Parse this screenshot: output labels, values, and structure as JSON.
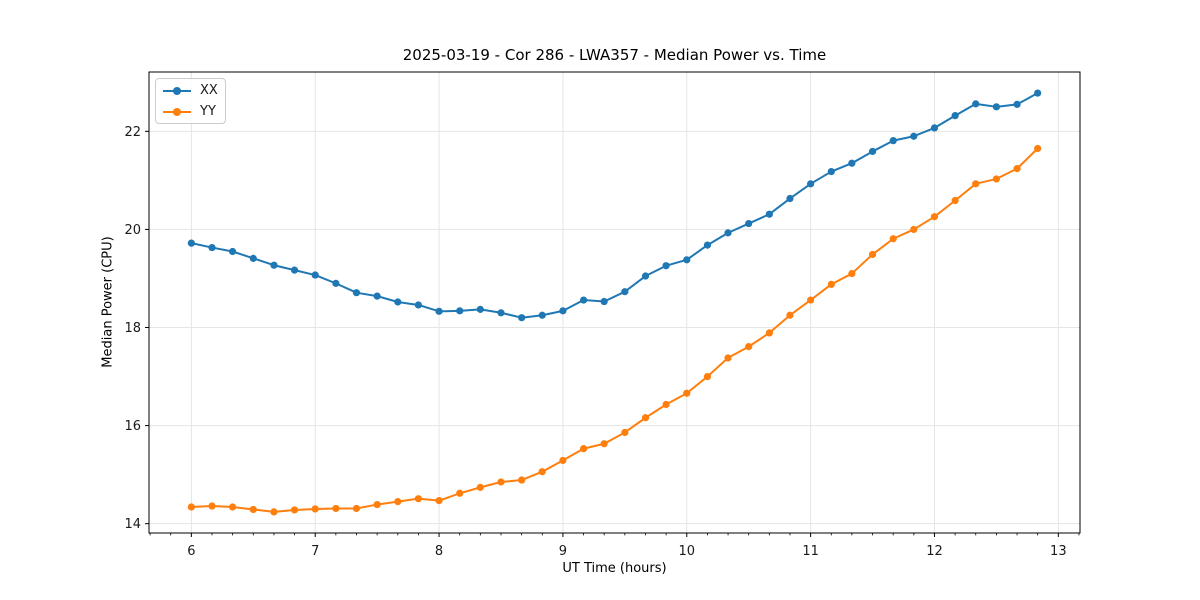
{
  "title": "2025-03-19 - Cor 286 - LWA357 - Median Power vs. Time",
  "colors": {
    "series_xx": "#1f77b4",
    "series_yy": "#ff7f0e",
    "grid": "#e5e5e5",
    "spine": "#000000",
    "text": "#1a1a1a"
  },
  "chart_data": {
    "type": "line",
    "title": "2025-03-19 - Cor 286 - LWA357 - Median Power vs. Time",
    "xlabel": "UT Time (hours)",
    "ylabel": "Median Power (CPU)",
    "grid": true,
    "legend_position": "upper left",
    "marker": "o",
    "xlim": [
      5.658,
      13.175
    ],
    "ylim": [
      13.81,
      23.21
    ],
    "xticks": [
      6,
      7,
      8,
      9,
      10,
      11,
      12,
      13
    ],
    "yticks": [
      14,
      16,
      18,
      20,
      22
    ],
    "minor_xtick_interval": 0.1667,
    "x": [
      6.0,
      6.167,
      6.333,
      6.5,
      6.667,
      6.833,
      7.0,
      7.167,
      7.333,
      7.5,
      7.667,
      7.833,
      8.0,
      8.167,
      8.333,
      8.5,
      8.667,
      8.833,
      9.0,
      9.167,
      9.333,
      9.5,
      9.667,
      9.833,
      10.0,
      10.167,
      10.333,
      10.5,
      10.667,
      10.833,
      11.0,
      11.167,
      11.333,
      11.5,
      11.667,
      11.833,
      12.0,
      12.167,
      12.333,
      12.5,
      12.667,
      12.833
    ],
    "series": [
      {
        "name": "XX",
        "color": "#1f77b4",
        "values": [
          19.72,
          19.63,
          19.55,
          19.41,
          19.27,
          19.17,
          19.07,
          18.9,
          18.71,
          18.64,
          18.52,
          18.46,
          18.33,
          18.34,
          18.37,
          18.3,
          18.2,
          18.25,
          18.34,
          18.56,
          18.53,
          18.73,
          19.05,
          19.26,
          19.38,
          19.68,
          19.93,
          20.12,
          20.31,
          20.63,
          20.93,
          21.18,
          21.35,
          21.59,
          21.81,
          21.9,
          22.07,
          22.32,
          22.56,
          22.5,
          22.55,
          22.78
        ]
      },
      {
        "name": "YY",
        "color": "#ff7f0e",
        "values": [
          14.34,
          14.36,
          14.34,
          14.29,
          14.24,
          14.28,
          14.3,
          14.31,
          14.31,
          14.39,
          14.45,
          14.51,
          14.47,
          14.62,
          14.74,
          14.85,
          14.89,
          15.06,
          15.29,
          15.53,
          15.63,
          15.86,
          16.16,
          16.43,
          16.66,
          17.0,
          17.38,
          17.61,
          17.89,
          18.25,
          18.56,
          18.88,
          19.1,
          19.49,
          19.81,
          20.0,
          20.26,
          20.59,
          20.93,
          21.03,
          21.24,
          21.65
        ]
      }
    ]
  }
}
